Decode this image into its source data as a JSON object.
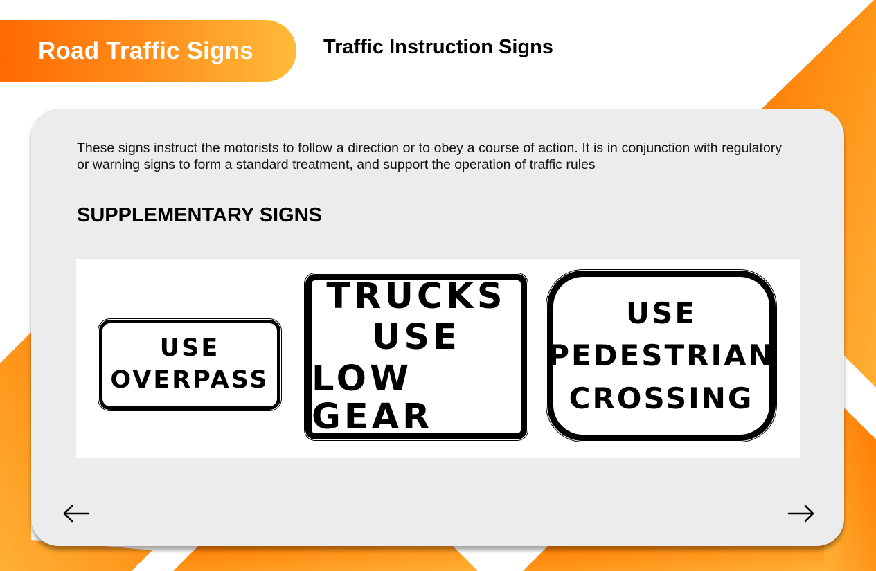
{
  "header": {
    "title": "Road Traffic Signs",
    "subtitle": "Traffic Instruction Signs"
  },
  "content": {
    "description": "These signs instruct the motorists to follow a direction or to obey a course of action. It is in conjunction with regulatory or warning signs to form a standard treatment, and support the operation of traffic rules",
    "section_heading": "SUPPLEMENTARY SIGNS",
    "signs": [
      {
        "lines": [
          "USE",
          "OVERPASS"
        ]
      },
      {
        "lines": [
          "TRUCKS",
          "USE",
          "LOW GEAR"
        ]
      },
      {
        "lines": [
          "USE",
          "PEDESTRIAN",
          "CROSSING"
        ]
      }
    ]
  },
  "navigation": {
    "prev_icon": "arrow-left-icon",
    "next_icon": "arrow-right-icon"
  },
  "colors": {
    "accent_orange": "#ff7a00",
    "accent_yellow": "#ffbb3a",
    "card_background": "#ececec"
  }
}
